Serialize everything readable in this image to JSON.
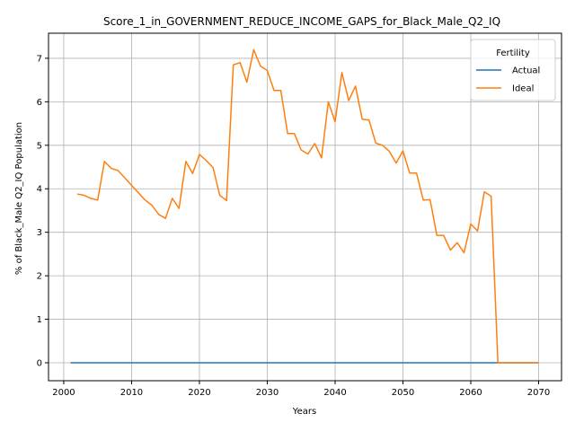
{
  "chart_data": {
    "type": "line",
    "title": "Score_1_in_GOVERNMENT_REDUCE_INCOME_GAPS_for_Black_Male_Q2_IQ",
    "xlabel": "Years",
    "ylabel": "% of Black_Male Q2_IQ Population",
    "xlim": [
      2001,
      2070
    ],
    "ylim": [
      0,
      7.2
    ],
    "x_ticks": [
      2000,
      2010,
      2020,
      2030,
      2040,
      2050,
      2060,
      2070
    ],
    "y_ticks": [
      0,
      1,
      2,
      3,
      4,
      5,
      6,
      7
    ],
    "grid": true,
    "legend": {
      "title": "Fertility",
      "position": "top-right"
    },
    "series": [
      {
        "name": "Actual",
        "color": "#1f77b4",
        "x": [
          2001,
          2070
        ],
        "y": [
          0,
          0
        ]
      },
      {
        "name": "Ideal",
        "color": "#ff7f0e",
        "x": [
          2002,
          2003,
          2004,
          2005,
          2006,
          2007,
          2008,
          2009,
          2010,
          2011,
          2012,
          2013,
          2014,
          2015,
          2016,
          2017,
          2018,
          2019,
          2020,
          2021,
          2022,
          2023,
          2024,
          2025,
          2026,
          2027,
          2028,
          2029,
          2030,
          2031,
          2032,
          2033,
          2034,
          2035,
          2036,
          2037,
          2038,
          2039,
          2040,
          2041,
          2042,
          2043,
          2044,
          2045,
          2046,
          2047,
          2048,
          2049,
          2050,
          2051,
          2052,
          2053,
          2054,
          2055,
          2056,
          2057,
          2058,
          2059,
          2060,
          2061,
          2062,
          2063,
          2064,
          2065,
          2066,
          2067,
          2068,
          2069,
          2070
        ],
        "y": [
          3.88,
          3.85,
          3.78,
          3.74,
          4.63,
          4.47,
          4.42,
          4.25,
          4.08,
          3.91,
          3.74,
          3.62,
          3.41,
          3.32,
          3.78,
          3.55,
          4.63,
          4.35,
          4.79,
          4.65,
          4.49,
          3.85,
          3.73,
          6.85,
          6.9,
          6.45,
          7.2,
          6.82,
          6.72,
          6.26,
          6.26,
          5.27,
          5.27,
          4.89,
          4.8,
          5.04,
          4.71,
          6.0,
          5.54,
          6.67,
          6.03,
          6.36,
          5.6,
          5.58,
          5.05,
          5.0,
          4.86,
          4.59,
          4.87,
          4.36,
          4.36,
          3.74,
          3.75,
          2.93,
          2.93,
          2.59,
          2.76,
          2.53,
          3.19,
          3.03,
          3.93,
          3.83,
          0,
          0,
          0,
          0,
          0,
          0,
          0
        ]
      }
    ]
  }
}
